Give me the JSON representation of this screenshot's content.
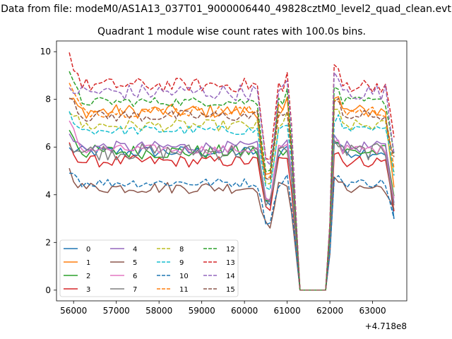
{
  "header": {
    "suptitle": "Data from file: modeM0/AS1A13_037T01_9000006440_49828cztM0_level2_quad_clean.evt"
  },
  "chart_data": {
    "type": "line",
    "title": "Quadrant 1 module wise count rates with 100.0s bins.",
    "xlabel": "",
    "ylabel": "",
    "x_offset_label": "+4.718e8",
    "xlim": [
      55600,
      63800
    ],
    "ylim": [
      -0.45,
      10.45
    ],
    "xticks": [
      56000,
      57000,
      58000,
      59000,
      60000,
      61000,
      62000,
      63000
    ],
    "yticks": [
      0,
      2,
      4,
      6,
      8,
      10
    ],
    "grid": false,
    "legend": {
      "placement": "lower-left",
      "columns": 4
    },
    "x_range": [
      55900,
      63500
    ],
    "bin_seconds": 100,
    "gap": {
      "start": 61300,
      "end": 61950
    },
    "dip": {
      "center": 60550,
      "width": 140
    },
    "series": [
      {
        "name": "0",
        "color": "#1f77b4",
        "dash": "solid",
        "level": 5.8,
        "noise": 0.25,
        "start": 5.9,
        "end": 3.0
      },
      {
        "name": "1",
        "color": "#ff7f0e",
        "dash": "solid",
        "level": 7.5,
        "noise": 0.3,
        "start": 8.0,
        "end": 4.2
      },
      {
        "name": "2",
        "color": "#2ca02c",
        "dash": "solid",
        "level": 5.8,
        "noise": 0.3,
        "start": 6.8,
        "end": 4.0
      },
      {
        "name": "3",
        "color": "#d62728",
        "dash": "solid",
        "level": 5.4,
        "noise": 0.25,
        "start": 6.0,
        "end": 3.5
      },
      {
        "name": "4",
        "color": "#9467bd",
        "dash": "solid",
        "level": 6.0,
        "noise": 0.25,
        "start": 6.4,
        "end": 3.8
      },
      {
        "name": "5",
        "color": "#8c564b",
        "dash": "solid",
        "level": 4.3,
        "noise": 0.25,
        "start": 5.0,
        "end": 3.2
      },
      {
        "name": "6",
        "color": "#e377c2",
        "dash": "solid",
        "level": 5.9,
        "noise": 0.2,
        "start": 7.0,
        "end": 3.9
      },
      {
        "name": "7",
        "color": "#7f7f7f",
        "dash": "solid",
        "level": 5.8,
        "noise": 0.35,
        "start": 6.2,
        "end": 3.8
      },
      {
        "name": "8",
        "color": "#bcbd22",
        "dash": "dashed",
        "level": 6.9,
        "noise": 0.25,
        "start": 7.6,
        "end": 4.8
      },
      {
        "name": "9",
        "color": "#17becf",
        "dash": "dashed",
        "level": 6.7,
        "noise": 0.2,
        "start": 7.4,
        "end": 5.0
      },
      {
        "name": "10",
        "color": "#1f77b4",
        "dash": "dashed",
        "level": 4.5,
        "noise": 0.2,
        "start": 5.1,
        "end": 2.9
      },
      {
        "name": "11",
        "color": "#ff7f0e",
        "dash": "dashed",
        "level": 7.5,
        "noise": 0.25,
        "start": 8.6,
        "end": 5.2
      },
      {
        "name": "12",
        "color": "#2ca02c",
        "dash": "dashed",
        "level": 7.9,
        "noise": 0.2,
        "start": 9.0,
        "end": 5.8
      },
      {
        "name": "13",
        "color": "#d62728",
        "dash": "dashed",
        "level": 8.6,
        "noise": 0.3,
        "start": 9.9,
        "end": 6.2
      },
      {
        "name": "14",
        "color": "#9467bd",
        "dash": "dashed",
        "level": 8.3,
        "noise": 0.35,
        "start": 8.5,
        "end": 5.8
      },
      {
        "name": "15",
        "color": "#8c564b",
        "dash": "dashed",
        "level": 7.3,
        "noise": 0.25,
        "start": 8.3,
        "end": 5.4
      }
    ]
  }
}
